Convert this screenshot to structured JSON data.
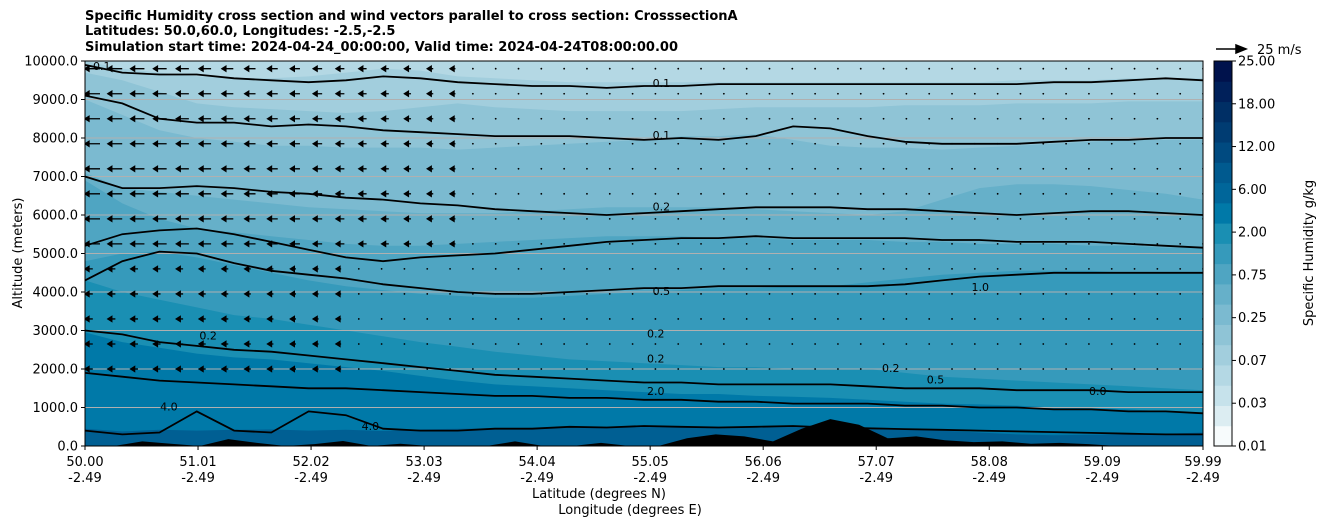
{
  "chart_data": {
    "type": "contour",
    "title_lines": [
      "Specific Humidity cross section and wind vectors parallel to cross section: CrosssectionA",
      "Latitudes: 50.0,60.0, Longitudes: -2.5,-2.5",
      "Simulation start time: 2024-04-24_00:00:00, Valid time: 2024-04-24T08:00:00.00"
    ],
    "xlabel_lines": [
      "Latitude (degrees N)",
      "Longitude (degrees E)"
    ],
    "ylabel": "Altitude (meters)",
    "xlim": [
      50.0,
      59.99
    ],
    "ylim": [
      0,
      10000
    ],
    "x_ticks": [
      {
        "lat": "50.00",
        "lon": "-2.49",
        "value": 50.0
      },
      {
        "lat": "51.01",
        "lon": "-2.49",
        "value": 51.01
      },
      {
        "lat": "52.02",
        "lon": "-2.49",
        "value": 52.02
      },
      {
        "lat": "53.03",
        "lon": "-2.49",
        "value": 53.03
      },
      {
        "lat": "54.04",
        "lon": "-2.49",
        "value": 54.04
      },
      {
        "lat": "55.05",
        "lon": "-2.49",
        "value": 55.05
      },
      {
        "lat": "56.06",
        "lon": "-2.49",
        "value": 56.06
      },
      {
        "lat": "57.07",
        "lon": "-2.49",
        "value": 57.07
      },
      {
        "lat": "58.08",
        "lon": "-2.49",
        "value": 58.08
      },
      {
        "lat": "59.09",
        "lon": "-2.49",
        "value": 59.09
      },
      {
        "lat": "59.99",
        "lon": "-2.49",
        "value": 59.99
      }
    ],
    "y_ticks": [
      {
        "label": "0.0",
        "value": 0
      },
      {
        "label": "1000.0",
        "value": 1000
      },
      {
        "label": "2000.0",
        "value": 2000
      },
      {
        "label": "3000.0",
        "value": 3000
      },
      {
        "label": "4000.0",
        "value": 4000
      },
      {
        "label": "5000.0",
        "value": 5000
      },
      {
        "label": "6000.0",
        "value": 6000
      },
      {
        "label": "7000.0",
        "value": 7000
      },
      {
        "label": "8000.0",
        "value": 8000
      },
      {
        "label": "9000.0",
        "value": 9000
      },
      {
        "label": "10000.0",
        "value": 10000
      }
    ],
    "colorbar": {
      "label": "Specific Humidity g/kg",
      "tick_labels": [
        "0.01",
        "0.03",
        "0.07",
        "0.25",
        "0.75",
        "2.00",
        "6.00",
        "12.00",
        "18.00",
        "25.00"
      ],
      "levels": [
        0.01,
        0.02,
        0.03,
        0.05,
        0.07,
        0.1,
        0.25,
        0.5,
        0.75,
        1.0,
        2.0,
        4.0,
        6.0,
        9.0,
        12.0,
        15.0,
        18.0,
        22.0,
        25.0
      ],
      "colors": [
        "#f7fbfc",
        "#dcedf2",
        "#c6e2eb",
        "#b4d8e4",
        "#a2cedd",
        "#8fc4d6",
        "#7bbad0",
        "#66b0c9",
        "#4fa5c2",
        "#369abb",
        "#1a8fb3",
        "#0079a8",
        "#00669a",
        "#005a8f",
        "#004a80",
        "#003c72",
        "#002f65",
        "#00205a",
        "#00124c"
      ]
    },
    "quiver_key": {
      "label": "25 m/s",
      "speed_ms": 25
    },
    "humidity_bands": [
      {
        "level_gkg": 4.0,
        "color": "#005f93",
        "top_m": [
          450,
          380,
          420,
          400,
          420,
          430,
          400,
          420,
          390,
          430,
          450,
          460,
          470,
          480,
          470,
          490,
          500,
          480,
          470,
          500,
          520,
          480,
          430,
          400,
          350,
          300,
          280,
          290,
          300,
          320,
          350
        ]
      },
      {
        "level_gkg": 2.0,
        "color": "#0079a8",
        "top_m": [
          2950,
          2700,
          2550,
          2400,
          2300,
          2250,
          2150,
          2050,
          1950,
          1820,
          1700,
          1600,
          1550,
          1500,
          1450,
          1400,
          1350,
          1350,
          1300,
          1280,
          1250,
          1200,
          1150,
          1100,
          1080,
          1050,
          1000,
          980,
          950,
          900,
          850
        ]
      },
      {
        "level_gkg": 1.0,
        "color": "#1a8fb3",
        "top_m": [
          4300,
          4000,
          3800,
          3600,
          3400,
          3300,
          3150,
          3000,
          2850,
          2700,
          2580,
          2450,
          2350,
          2250,
          2200,
          2150,
          2100,
          2050,
          2050,
          2000,
          2000,
          2000,
          1900,
          1800,
          1750,
          1700,
          1650,
          1600,
          1550,
          1500,
          1450
        ]
      },
      {
        "level_gkg": 0.5,
        "color": "#369abb",
        "top_m": [
          4800,
          5000,
          5050,
          4900,
          4700,
          4500,
          4300,
          4150,
          4050,
          3950,
          3900,
          3850,
          3850,
          3900,
          3950,
          4000,
          4050,
          4100,
          4100,
          4150,
          4150,
          4250,
          4350,
          4450,
          4500,
          4550,
          4550,
          4550,
          4500,
          4500,
          4500
        ]
      },
      {
        "level_gkg": 0.25,
        "color": "#4fa5c2",
        "top_m": [
          6900,
          6300,
          5900,
          5650,
          5550,
          5450,
          5350,
          5250,
          5200,
          5200,
          5250,
          5300,
          5350,
          5400,
          5450,
          5450,
          5450,
          5400,
          5400,
          5350,
          5350,
          5350,
          5300,
          5300,
          5250,
          5250,
          5250,
          5200,
          5200,
          5150,
          5150
        ]
      },
      {
        "level_gkg": 0.2,
        "color": "#66b0c9",
        "top_m": [
          7100,
          6700,
          6600,
          6500,
          6400,
          6300,
          6200,
          6150,
          6100,
          6050,
          6050,
          6050,
          6100,
          6150,
          6200,
          6200,
          6200,
          6200,
          6150,
          6100,
          6050,
          6000,
          6100,
          6400,
          6700,
          6800,
          6800,
          6750,
          6650,
          6550,
          6400
        ]
      },
      {
        "level_gkg": 0.1,
        "color": "#7bbad0",
        "top_m": [
          9000,
          8600,
          8200,
          8000,
          7900,
          7800,
          7800,
          7750,
          7750,
          7750,
          7700,
          7750,
          7800,
          7850,
          7900,
          7950,
          8050,
          8050,
          8100,
          7950,
          7800,
          7750,
          7750,
          7700,
          7750,
          7800,
          7850,
          7900,
          7950,
          7950,
          7950
        ]
      },
      {
        "level_gkg": 0.07,
        "color": "#8fc4d6",
        "top_m": [
          9700,
          9500,
          9200,
          8900,
          8800,
          8750,
          8700,
          8650,
          8700,
          8800,
          8900,
          8800,
          8750,
          8700,
          8700,
          8700,
          8700,
          8750,
          8800,
          8800,
          8800,
          8800,
          8850,
          8850,
          8850,
          8900,
          8900,
          8900,
          8950,
          8950,
          8950
        ]
      },
      {
        "level_gkg": 0.05,
        "color": "#a2cedd",
        "top_m": [
          10000,
          9800,
          9700,
          9600,
          9550,
          9550,
          9600,
          9700,
          9800,
          9750,
          9600,
          9550,
          9500,
          9450,
          9450,
          9450,
          9450,
          9450,
          9450,
          9450,
          9450,
          9450,
          9450,
          9450,
          9450,
          9500,
          9500,
          9500,
          9550,
          9550,
          9550
        ]
      }
    ],
    "contour_lines": [
      {
        "level": "0.1",
        "y_m": [
          9900,
          9700,
          9650,
          9650,
          9550,
          9500,
          9450,
          9500,
          9600,
          9550,
          9450,
          9400,
          9350,
          9350,
          9300,
          9350,
          9350,
          9400,
          9400,
          9400,
          9400,
          9400,
          9400,
          9400,
          9400,
          9400,
          9450,
          9450,
          9500,
          9550,
          9500
        ]
      },
      {
        "level": "0.1",
        "y_m": [
          9100,
          8900,
          8500,
          8400,
          8400,
          8300,
          8350,
          8300,
          8200,
          8150,
          8100,
          8050,
          8050,
          8050,
          8000,
          7950,
          8000,
          7950,
          8050,
          8300,
          8250,
          8050,
          7900,
          7850,
          7850,
          7850,
          7900,
          7950,
          7950,
          8000,
          8000
        ]
      },
      {
        "level": "0.2",
        "y_m": [
          7000,
          6700,
          6700,
          6750,
          6700,
          6600,
          6550,
          6450,
          6400,
          6300,
          6250,
          6150,
          6100,
          6050,
          6000,
          6050,
          6100,
          6150,
          6200,
          6200,
          6200,
          6150,
          6150,
          6100,
          6050,
          6000,
          6050,
          6100,
          6100,
          6050,
          6000
        ]
      },
      {
        "level": "0.2",
        "y_m": [
          5200,
          5500,
          5600,
          5650,
          5500,
          5300,
          5100,
          4900,
          4800,
          4900,
          4950,
          5000,
          5100,
          5200,
          5300,
          5350,
          5400,
          5400,
          5450,
          5400,
          5400,
          5400,
          5400,
          5350,
          5350,
          5300,
          5300,
          5300,
          5250,
          5200,
          5150
        ]
      },
      {
        "level": "0.5",
        "y_m": [
          4300,
          4800,
          5050,
          5000,
          4750,
          4550,
          4450,
          4350,
          4200,
          4100,
          4000,
          3950,
          3950,
          4000,
          4050,
          4100,
          4100,
          4150,
          4150,
          4150,
          4150,
          4150,
          4200,
          4300,
          4400,
          4450,
          4500,
          4500,
          4500,
          4500,
          4500
        ]
      },
      {
        "level": "1.0",
        "y_m": [
          3000,
          2900,
          2700,
          2600,
          2500,
          2450,
          2350,
          2250,
          2150,
          2050,
          1950,
          1850,
          1800,
          1750,
          1700,
          1650,
          1650,
          1600,
          1600,
          1600,
          1600,
          1550,
          1500,
          1500,
          1500,
          1450,
          1450,
          1450,
          1400,
          1400,
          1400
        ]
      },
      {
        "level": "2.0",
        "y_m": [
          1900,
          1800,
          1700,
          1650,
          1600,
          1550,
          1500,
          1500,
          1450,
          1400,
          1350,
          1300,
          1300,
          1250,
          1250,
          1200,
          1200,
          1150,
          1150,
          1100,
          1100,
          1100,
          1050,
          1050,
          1000,
          1000,
          950,
          950,
          900,
          900,
          850
        ]
      },
      {
        "level": "4.0",
        "y_m": [
          400,
          300,
          350,
          900,
          400,
          350,
          900,
          800,
          450,
          400,
          400,
          450,
          450,
          500,
          480,
          520,
          500,
          480,
          500,
          520,
          480,
          460,
          440,
          420,
          400,
          380,
          360,
          340,
          320,
          300,
          300
        ]
      }
    ],
    "contour_labels": [
      {
        "text": "0.1",
        "lat": 55.15,
        "alt": 9400
      },
      {
        "text": "0.1",
        "lat": 55.15,
        "alt": 8050
      },
      {
        "text": "0.2",
        "lat": 55.15,
        "alt": 6200
      },
      {
        "text": "0.5",
        "lat": 55.15,
        "alt": 4000
      },
      {
        "text": "0.2",
        "lat": 55.1,
        "alt": 2900
      },
      {
        "text": "0.2",
        "lat": 55.1,
        "alt": 2250
      },
      {
        "text": "2.0",
        "lat": 55.1,
        "alt": 1400
      },
      {
        "text": "0.2",
        "lat": 51.1,
        "alt": 2850
      },
      {
        "text": "1.0",
        "lat": 58.0,
        "alt": 4100
      },
      {
        "text": "0.2",
        "lat": 57.2,
        "alt": 2000
      },
      {
        "text": "0.5",
        "lat": 57.6,
        "alt": 1700
      },
      {
        "text": "0.0",
        "lat": 59.05,
        "alt": 1400
      },
      {
        "text": "4.0",
        "lat": 50.75,
        "alt": 1000
      },
      {
        "text": "4.0",
        "lat": 52.55,
        "alt": 500
      },
      {
        "text": "0.1",
        "lat": 50.15,
        "alt": 9850
      }
    ],
    "terrain_m": [
      0,
      0,
      120,
      60,
      0,
      180,
      80,
      0,
      50,
      130,
      0,
      60,
      0,
      0,
      0,
      120,
      0,
      0,
      80,
      0,
      0,
      200,
      300,
      250,
      120,
      450,
      700,
      550,
      200,
      250,
      150,
      100,
      120,
      60,
      80,
      50,
      0,
      0,
      0,
      0
    ]
  }
}
